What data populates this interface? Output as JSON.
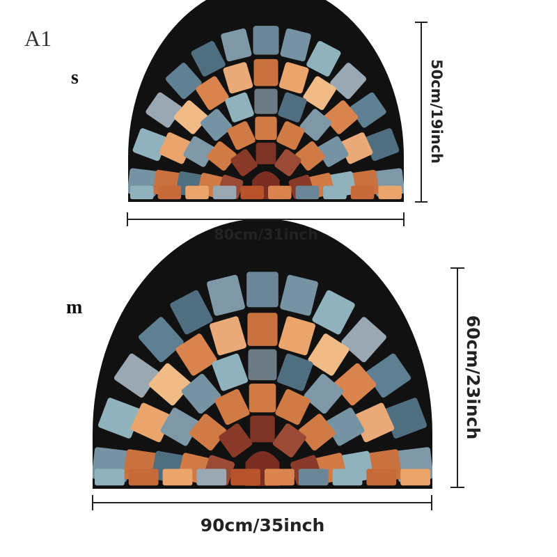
{
  "label": "A1",
  "sizes": [
    {
      "name": "s",
      "width": "80cm/31inch",
      "height": "50cm/19inch"
    },
    {
      "name": "m",
      "width": "90cm/35inch",
      "height": "60cm/23inch"
    }
  ]
}
